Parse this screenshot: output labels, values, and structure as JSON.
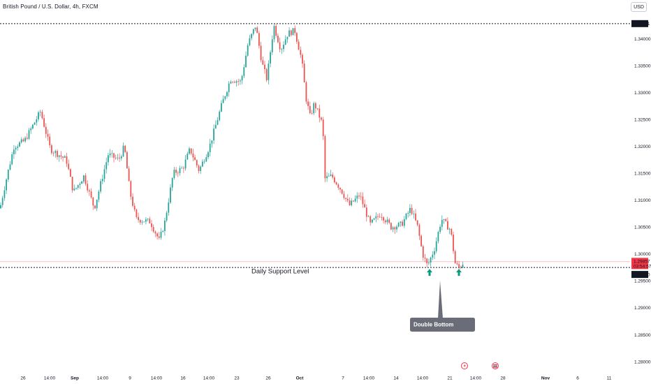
{
  "header": {
    "title": "British Pound / U.S. Dollar, 4h, FXCM",
    "currency": "USD"
  },
  "colors": {
    "up": "#26a69a",
    "down": "#ef5350",
    "level_line": "#131722",
    "price_line": "#f23645",
    "annotation_arrow": "#089981",
    "callout_bg": "#6a6d78"
  },
  "annotations": {
    "support_label": "Daily Support Level",
    "double_bottom_label": "Double Bottom",
    "event_icons": [
      "lightning-icon",
      "flag-icon"
    ]
  },
  "price_tags": {
    "top_level": "1.34281",
    "current_price": "1.29857",
    "countdown": "03:54:57",
    "support_level": "1.29750"
  },
  "chart_data": {
    "type": "candlestick",
    "title": "British Pound / U.S. Dollar, 4h, FXCM",
    "ylim": [
      1.2775,
      1.345
    ],
    "y_ticks": [
      "1.34000",
      "1.33500",
      "1.33000",
      "1.32500",
      "1.32000",
      "1.31500",
      "1.31000",
      "1.30500",
      "1.30000",
      "1.29500",
      "1.29000",
      "1.28500",
      "1.28000"
    ],
    "x_ticks": [
      "26",
      "14:00",
      "Sep",
      "14:00",
      "9",
      "14:00",
      "16",
      "14:00",
      "23",
      "26",
      "Oct",
      "7",
      "14:00",
      "14",
      "14:00",
      "21",
      "14:00",
      "28",
      "Nov",
      "6",
      "11"
    ],
    "horizontal_levels": [
      {
        "label": "Daily Support Level",
        "value": 1.2975
      },
      {
        "label": "",
        "value": 1.34281
      }
    ],
    "current_price": 1.29857,
    "waypoints": [
      [
        0,
        1.3085
      ],
      [
        10,
        1.3145
      ],
      [
        20,
        1.32
      ],
      [
        35,
        1.321
      ],
      [
        58,
        1.3265
      ],
      [
        72,
        1.3195
      ],
      [
        95,
        1.3175
      ],
      [
        105,
        1.3115
      ],
      [
        120,
        1.3145
      ],
      [
        135,
        1.3085
      ],
      [
        155,
        1.3185
      ],
      [
        170,
        1.3175
      ],
      [
        178,
        1.32
      ],
      [
        186,
        1.3115
      ],
      [
        195,
        1.3065
      ],
      [
        215,
        1.306
      ],
      [
        228,
        1.3025
      ],
      [
        236,
        1.306
      ],
      [
        248,
        1.315
      ],
      [
        262,
        1.316
      ],
      [
        272,
        1.3195
      ],
      [
        285,
        1.3155
      ],
      [
        300,
        1.32
      ],
      [
        318,
        1.328
      ],
      [
        330,
        1.3325
      ],
      [
        345,
        1.332
      ],
      [
        355,
        1.339
      ],
      [
        366,
        1.3425
      ],
      [
        375,
        1.3355
      ],
      [
        382,
        1.3325
      ],
      [
        392,
        1.3425
      ],
      [
        402,
        1.338
      ],
      [
        412,
        1.341
      ],
      [
        422,
        1.3415
      ],
      [
        432,
        1.336
      ],
      [
        438,
        1.329
      ],
      [
        444,
        1.3255
      ],
      [
        450,
        1.328
      ],
      [
        462,
        1.324
      ],
      [
        465,
        1.314
      ],
      [
        475,
        1.3145
      ],
      [
        488,
        1.312
      ],
      [
        500,
        1.309
      ],
      [
        515,
        1.311
      ],
      [
        530,
        1.3055
      ],
      [
        545,
        1.3075
      ],
      [
        560,
        1.305
      ],
      [
        575,
        1.3055
      ],
      [
        588,
        1.3085
      ],
      [
        598,
        1.305
      ],
      [
        605,
        1.3
      ],
      [
        612,
        1.2978
      ],
      [
        622,
        1.301
      ],
      [
        632,
        1.3065
      ],
      [
        645,
        1.3045
      ],
      [
        652,
        1.298
      ],
      [
        658,
        1.2975
      ],
      [
        664,
        1.2986
      ]
    ]
  }
}
